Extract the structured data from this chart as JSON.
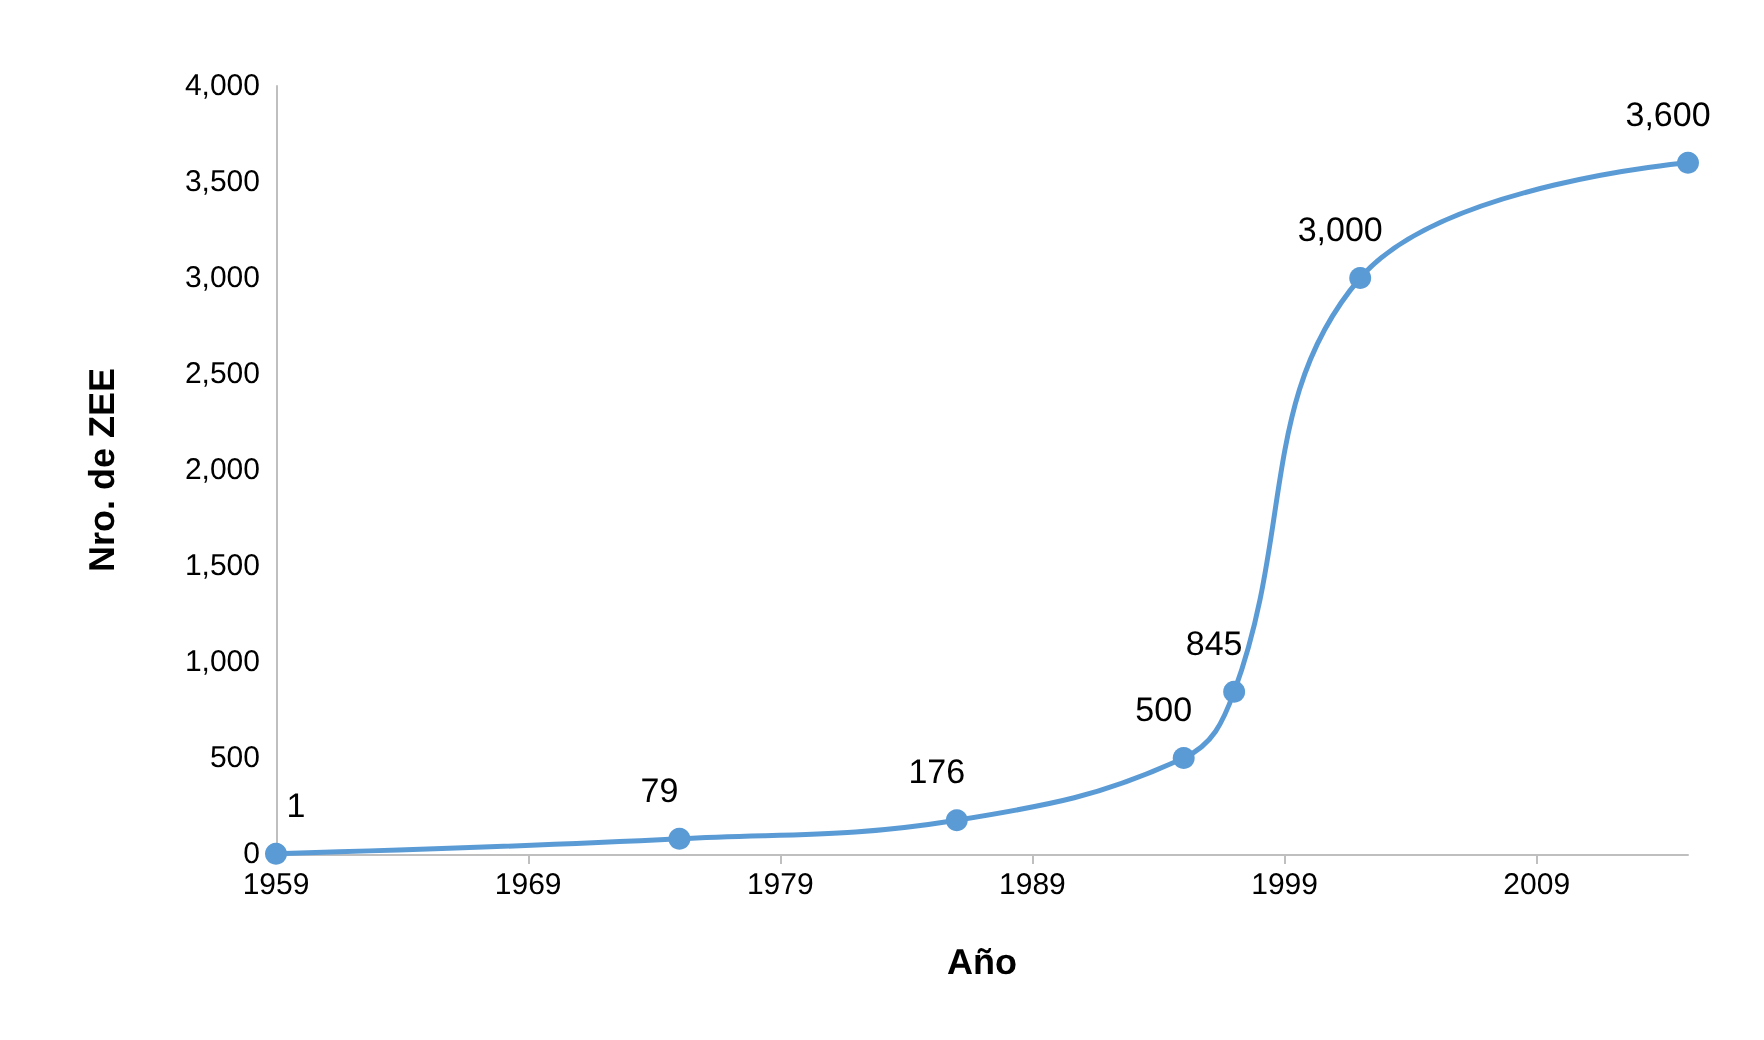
{
  "chart_data": {
    "type": "line",
    "xlabel": "Año",
    "ylabel": "Nro. de ZEE",
    "x": [
      1959,
      1975,
      1986,
      1995,
      1997,
      2002,
      2015
    ],
    "series": [
      {
        "color": "#5b9bd5",
        "values": [
          1,
          79,
          176,
          500,
          845,
          3000,
          3600
        ],
        "value_labels": [
          "1",
          "79",
          "176",
          "500",
          "845",
          "3,000",
          "3,600"
        ]
      }
    ],
    "xlim": [
      1959,
      2015
    ],
    "xticks": [
      1959,
      1969,
      1979,
      1989,
      1999,
      2009
    ],
    "ylim": [
      0,
      4000
    ],
    "yticks": [
      0,
      500,
      {
        "value": 1000,
        "label": "1,000"
      },
      {
        "value": 1500,
        "label": "1,500"
      },
      {
        "value": 2000,
        "label": "2,000"
      },
      {
        "value": 2500,
        "label": "2,500"
      },
      {
        "value": 3000,
        "label": "3,000"
      },
      {
        "value": 3500,
        "label": "3,500"
      },
      {
        "value": 4000,
        "label": "4,000"
      }
    ],
    "marker": "circle",
    "line_style": "solid",
    "grid": false
  }
}
